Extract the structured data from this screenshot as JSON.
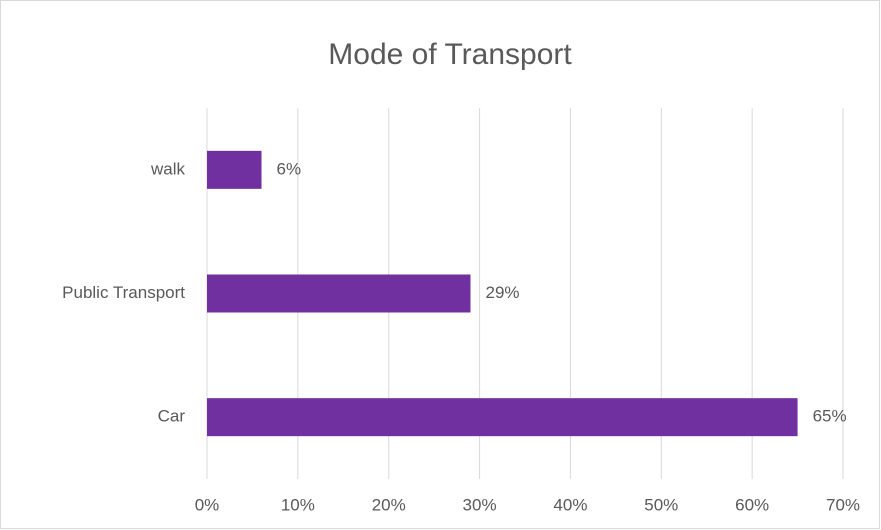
{
  "chart_data": {
    "type": "hbar",
    "title": "Mode of Transport",
    "categories": [
      "walk",
      "Public Transport",
      "Car"
    ],
    "values": [
      6,
      29,
      65
    ],
    "value_labels": [
      "6%",
      "29%",
      "65%"
    ],
    "color": "#7030a0",
    "xlim": [
      0,
      70
    ],
    "xticks": [
      {
        "value": 0,
        "label": "0%"
      },
      {
        "value": 10,
        "label": "10%"
      },
      {
        "value": 20,
        "label": "20%"
      },
      {
        "value": 30,
        "label": "30%"
      },
      {
        "value": 40,
        "label": "40%"
      },
      {
        "value": 50,
        "label": "50%"
      },
      {
        "value": 60,
        "label": "60%"
      },
      {
        "value": 70,
        "label": "70%"
      }
    ],
    "grid": true
  }
}
